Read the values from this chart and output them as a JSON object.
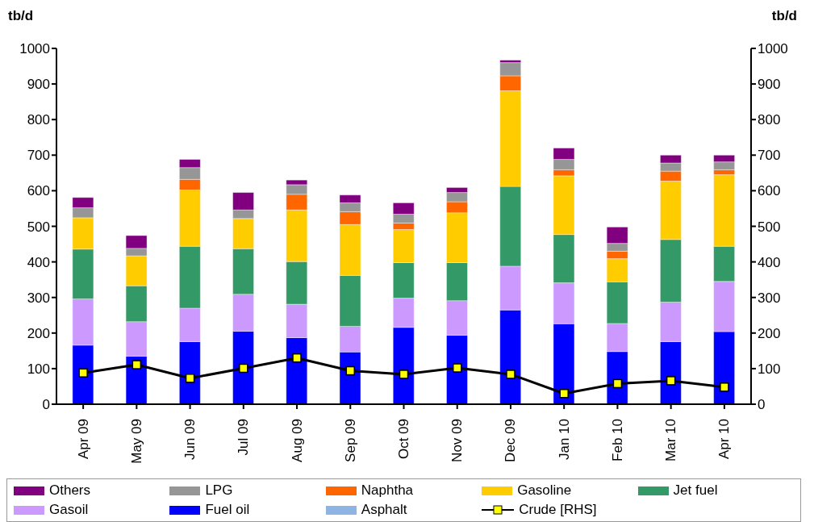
{
  "chart_data": {
    "type": "bar",
    "stacked": true,
    "ylabel": "tb/d",
    "y2label": "tb/d",
    "categories": [
      "Apr 09",
      "May 09",
      "Jun 09",
      "Jul 09",
      "Aug 09",
      "Sep 09",
      "Oct 09",
      "Nov 09",
      "Dec 09",
      "Jan 10",
      "Feb 10",
      "Mar 10",
      "Apr 10"
    ],
    "series": [
      {
        "name": "Asphalt",
        "color": "#8db4e2",
        "values": [
          0,
          0,
          0,
          0,
          0,
          0,
          0,
          0,
          0,
          0,
          0,
          0,
          0
        ]
      },
      {
        "name": "Fuel oil",
        "color": "#0000ff",
        "values": [
          166,
          135,
          176,
          205,
          187,
          147,
          216,
          194,
          265,
          226,
          148,
          176,
          204
        ]
      },
      {
        "name": "Gasoil",
        "color": "#cc99ff",
        "values": [
          130,
          97,
          94,
          104,
          94,
          72,
          82,
          97,
          123,
          115,
          79,
          111,
          141
        ]
      },
      {
        "name": "Jet fuel",
        "color": "#339966",
        "values": [
          140,
          101,
          174,
          128,
          120,
          143,
          100,
          107,
          224,
          136,
          117,
          176,
          99
        ]
      },
      {
        "name": "Gasoline",
        "color": "#ffcc00",
        "values": [
          88,
          84,
          158,
          85,
          145,
          143,
          93,
          140,
          269,
          165,
          65,
          164,
          201
        ]
      },
      {
        "name": "Naphtha",
        "color": "#ff6600",
        "values": [
          0,
          0,
          30,
          0,
          44,
          36,
          18,
          31,
          42,
          17,
          21,
          28,
          14
        ]
      },
      {
        "name": "LPG",
        "color": "#969696",
        "values": [
          28,
          21,
          33,
          24,
          27,
          25,
          25,
          26,
          37,
          29,
          22,
          23,
          22
        ]
      },
      {
        "name": "Others",
        "color": "#800080",
        "values": [
          29,
          36,
          23,
          49,
          13,
          22,
          32,
          14,
          7,
          32,
          46,
          22,
          19
        ]
      },
      {
        "name": "Crude [RHS]",
        "type": "line",
        "axis": "y2",
        "color": "#000000",
        "marker": "square",
        "values": [
          88,
          111,
          73,
          101,
          130,
          94,
          84,
          102,
          84,
          30,
          58,
          66,
          48
        ]
      }
    ],
    "ylim": [
      0,
      1000
    ],
    "yticks": [
      0,
      100,
      200,
      300,
      400,
      500,
      600,
      700,
      800,
      900,
      1000
    ],
    "y2lim": [
      0,
      1000
    ],
    "y2ticks": [
      0,
      100,
      200,
      300,
      400,
      500,
      600,
      700,
      800,
      900,
      1000
    ],
    "legend": "bottom"
  }
}
